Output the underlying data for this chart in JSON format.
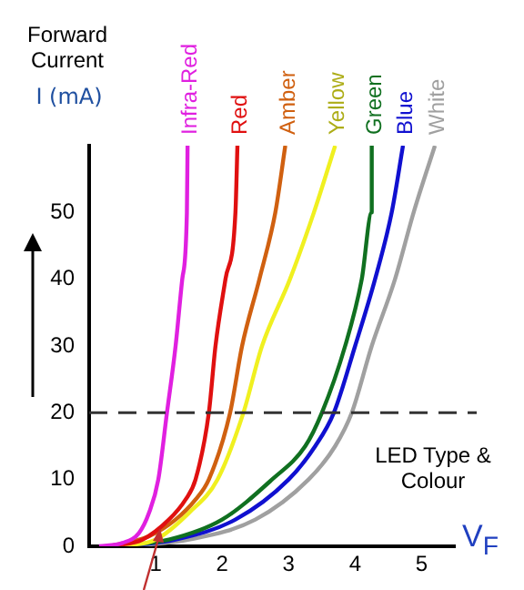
{
  "chart_data": {
    "type": "line",
    "title": "Forward Current",
    "ylabel": "I (mA)",
    "xlabel": "V$_{F}$",
    "annotations": [
      "LED Type & Colour"
    ],
    "xlim": [
      0,
      5.5
    ],
    "xticks": [
      1,
      2,
      3,
      4,
      5
    ],
    "ylim": [
      0,
      60
    ],
    "yticks": [
      0,
      10,
      20,
      30,
      40,
      50
    ],
    "grid": false,
    "legend": false,
    "marker": "none",
    "line_style": "solid",
    "ref_lines": [
      {
        "axis": "y",
        "value": 20,
        "color": "#333333",
        "line_style": "dashed"
      }
    ],
    "series": [
      {
        "name": "Infra-Red",
        "color": "#e020e0",
        "x": [
          0.15,
          0.5,
          0.75,
          0.9,
          1.04,
          1.17,
          1.3,
          1.4,
          1.47,
          1.48
        ],
        "values": [
          0,
          0.5,
          2,
          5,
          10,
          20,
          30,
          40,
          50,
          60
        ]
      },
      {
        "name": "Red",
        "color": "#e01010",
        "x": [
          0.3,
          0.8,
          1.2,
          1.45,
          1.6,
          1.8,
          1.9,
          2.05,
          2.2,
          2.23
        ],
        "values": [
          0,
          1,
          4,
          7,
          10,
          20,
          30,
          40,
          50,
          60
        ]
      },
      {
        "name": "Amber",
        "color": "#d06010",
        "x": [
          0.3,
          0.9,
          1.3,
          1.6,
          1.8,
          2.12,
          2.3,
          2.56,
          2.8,
          2.95
        ],
        "values": [
          0,
          1.5,
          4,
          7,
          10,
          20,
          30,
          40,
          50,
          60
        ]
      },
      {
        "name": "Yellow",
        "color": "#f0f020",
        "x": [
          0.4,
          1,
          1.5,
          1.93,
          2.32,
          2.6,
          3.02,
          3.38,
          3.7
        ],
        "values": [
          0,
          1,
          5,
          10,
          20,
          30,
          40,
          50,
          60
        ]
      },
      {
        "name": "Green",
        "color": "#107020",
        "x": [
          0.4,
          1.2,
          2,
          2.75,
          3.25,
          3.5,
          3.85,
          4.1,
          4.25,
          4.25
        ],
        "values": [
          0,
          1,
          4,
          10,
          15,
          20,
          30,
          40,
          50,
          60
        ]
      },
      {
        "name": "Blue",
        "color": "#1010d0",
        "x": [
          0.5,
          1.3,
          2.2,
          3,
          3.4,
          3.68,
          4,
          4.3,
          4.55,
          4.72
        ],
        "values": [
          0,
          1,
          4,
          10,
          15,
          20,
          30,
          40,
          50,
          60
        ]
      },
      {
        "name": "White",
        "color": "#a0a0a0",
        "x": [
          0.6,
          1.5,
          2.5,
          3.3,
          3.7,
          3.95,
          4.25,
          4.6,
          4.88,
          5.2
        ],
        "values": [
          0,
          1,
          4,
          10,
          15,
          20,
          30,
          40,
          50,
          60
        ]
      }
    ]
  }
}
